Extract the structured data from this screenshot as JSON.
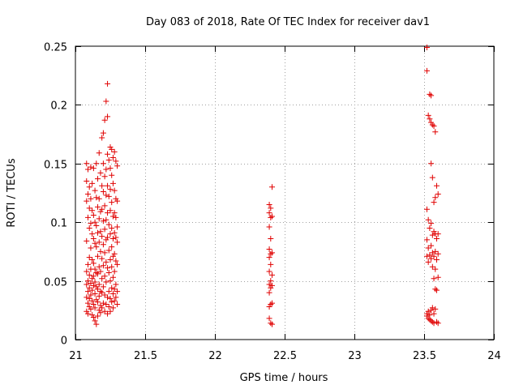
{
  "chart_data": {
    "type": "scatter",
    "title": "Day 083 of 2018, Rate Of TEC Index for receiver dav1",
    "xlabel": "GPS time / hours",
    "ylabel": "ROTI / TECUs",
    "xlim": [
      21,
      24
    ],
    "ylim": [
      0,
      0.25
    ],
    "grid": true,
    "marker": "+",
    "marker_color": "#e00000",
    "x_ticks": [
      "21",
      "21.5",
      "22",
      "22.5",
      "23",
      "23.5",
      "24"
    ],
    "y_ticks": [
      "0",
      "0.05",
      "0.1",
      "0.15",
      "0.2",
      "0.25"
    ],
    "series": [
      {
        "name": "dav1",
        "points": [
          [
            21.08,
            0.15
          ],
          [
            21.08,
            0.135
          ],
          [
            21.08,
            0.118
          ],
          [
            21.08,
            0.084
          ],
          [
            21.08,
            0.058
          ],
          [
            21.08,
            0.047
          ],
          [
            21.08,
            0.036
          ],
          [
            21.08,
            0.024
          ],
          [
            21.09,
            0.145
          ],
          [
            21.09,
            0.124
          ],
          [
            21.09,
            0.104
          ],
          [
            21.09,
            0.064
          ],
          [
            21.09,
            0.05
          ],
          [
            21.09,
            0.041
          ],
          [
            21.09,
            0.031
          ],
          [
            21.09,
            0.022
          ],
          [
            21.1,
            0.13
          ],
          [
            21.1,
            0.112
          ],
          [
            21.1,
            0.095
          ],
          [
            21.1,
            0.07
          ],
          [
            21.1,
            0.055
          ],
          [
            21.1,
            0.044
          ],
          [
            21.1,
            0.035
          ],
          [
            21.1,
            0.028
          ],
          [
            21.11,
            0.147
          ],
          [
            21.11,
            0.12
          ],
          [
            21.11,
            0.099
          ],
          [
            21.11,
            0.078
          ],
          [
            21.11,
            0.06
          ],
          [
            21.11,
            0.048
          ],
          [
            21.11,
            0.038
          ],
          [
            21.11,
            0.026
          ],
          [
            21.12,
            0.133
          ],
          [
            21.12,
            0.11
          ],
          [
            21.12,
            0.09
          ],
          [
            21.12,
            0.068
          ],
          [
            21.12,
            0.052
          ],
          [
            21.12,
            0.042
          ],
          [
            21.12,
            0.033
          ],
          [
            21.12,
            0.021
          ],
          [
            21.13,
            0.146
          ],
          [
            21.13,
            0.106
          ],
          [
            21.13,
            0.086
          ],
          [
            21.13,
            0.065
          ],
          [
            21.13,
            0.054
          ],
          [
            21.13,
            0.046
          ],
          [
            21.13,
            0.03
          ],
          [
            21.13,
            0.019
          ],
          [
            21.14,
            0.127
          ],
          [
            21.14,
            0.1
          ],
          [
            21.14,
            0.082
          ],
          [
            21.14,
            0.06
          ],
          [
            21.14,
            0.049
          ],
          [
            21.14,
            0.039
          ],
          [
            21.14,
            0.027
          ],
          [
            21.14,
            0.016
          ],
          [
            21.15,
            0.15
          ],
          [
            21.15,
            0.121
          ],
          [
            21.15,
            0.097
          ],
          [
            21.15,
            0.079
          ],
          [
            21.15,
            0.057
          ],
          [
            21.15,
            0.045
          ],
          [
            21.15,
            0.034
          ],
          [
            21.15,
            0.013
          ],
          [
            21.16,
            0.137
          ],
          [
            21.16,
            0.113
          ],
          [
            21.16,
            0.091
          ],
          [
            21.16,
            0.071
          ],
          [
            21.16,
            0.056
          ],
          [
            21.16,
            0.043
          ],
          [
            21.16,
            0.032
          ],
          [
            21.16,
            0.02
          ],
          [
            21.17,
            0.159
          ],
          [
            21.17,
            0.12
          ],
          [
            21.17,
            0.103
          ],
          [
            21.17,
            0.083
          ],
          [
            21.17,
            0.062
          ],
          [
            21.17,
            0.047
          ],
          [
            21.17,
            0.037
          ],
          [
            21.17,
            0.025
          ],
          [
            21.18,
            0.142
          ],
          [
            21.18,
            0.109
          ],
          [
            21.18,
            0.092
          ],
          [
            21.18,
            0.075
          ],
          [
            21.18,
            0.058
          ],
          [
            21.18,
            0.041
          ],
          [
            21.18,
            0.029
          ],
          [
            21.18,
            0.023
          ],
          [
            21.19,
            0.172
          ],
          [
            21.19,
            0.131
          ],
          [
            21.19,
            0.111
          ],
          [
            21.19,
            0.088
          ],
          [
            21.19,
            0.069
          ],
          [
            21.19,
            0.052
          ],
          [
            21.19,
            0.04
          ],
          [
            21.19,
            0.027
          ],
          [
            21.2,
            0.176
          ],
          [
            21.2,
            0.15
          ],
          [
            21.2,
            0.126
          ],
          [
            21.2,
            0.101
          ],
          [
            21.2,
            0.081
          ],
          [
            21.2,
            0.063
          ],
          [
            21.2,
            0.045
          ],
          [
            21.2,
            0.031
          ],
          [
            21.21,
            0.187
          ],
          [
            21.21,
            0.139
          ],
          [
            21.21,
            0.114
          ],
          [
            21.21,
            0.094
          ],
          [
            21.21,
            0.074
          ],
          [
            21.21,
            0.054
          ],
          [
            21.21,
            0.038
          ],
          [
            21.21,
            0.024
          ],
          [
            21.22,
            0.203
          ],
          [
            21.22,
            0.145
          ],
          [
            21.22,
            0.123
          ],
          [
            21.22,
            0.102
          ],
          [
            21.22,
            0.085
          ],
          [
            21.22,
            0.066
          ],
          [
            21.22,
            0.049
          ],
          [
            21.22,
            0.03
          ],
          [
            21.23,
            0.218
          ],
          [
            21.23,
            0.19
          ],
          [
            21.23,
            0.158
          ],
          [
            21.23,
            0.131
          ],
          [
            21.23,
            0.108
          ],
          [
            21.23,
            0.087
          ],
          [
            21.23,
            0.061
          ],
          [
            21.23,
            0.036
          ],
          [
            21.23,
            0.022
          ],
          [
            21.24,
            0.153
          ],
          [
            21.24,
            0.122
          ],
          [
            21.24,
            0.098
          ],
          [
            21.24,
            0.076
          ],
          [
            21.24,
            0.057
          ],
          [
            21.24,
            0.041
          ],
          [
            21.24,
            0.028
          ],
          [
            21.25,
            0.164
          ],
          [
            21.25,
            0.146
          ],
          [
            21.25,
            0.128
          ],
          [
            21.25,
            0.11
          ],
          [
            21.25,
            0.09
          ],
          [
            21.25,
            0.068
          ],
          [
            21.25,
            0.05
          ],
          [
            21.25,
            0.035
          ],
          [
            21.25,
            0.024
          ],
          [
            21.26,
            0.162
          ],
          [
            21.26,
            0.14
          ],
          [
            21.26,
            0.117
          ],
          [
            21.26,
            0.095
          ],
          [
            21.26,
            0.079
          ],
          [
            21.26,
            0.062
          ],
          [
            21.26,
            0.044
          ],
          [
            21.26,
            0.032
          ],
          [
            21.27,
            0.155
          ],
          [
            21.27,
            0.133
          ],
          [
            21.27,
            0.105
          ],
          [
            21.27,
            0.086
          ],
          [
            21.27,
            0.071
          ],
          [
            21.27,
            0.053
          ],
          [
            21.27,
            0.039
          ],
          [
            21.27,
            0.027
          ],
          [
            21.28,
            0.16
          ],
          [
            21.28,
            0.127
          ],
          [
            21.28,
            0.108
          ],
          [
            21.28,
            0.091
          ],
          [
            21.28,
            0.073
          ],
          [
            21.28,
            0.058
          ],
          [
            21.28,
            0.043
          ],
          [
            21.28,
            0.033
          ],
          [
            21.29,
            0.152
          ],
          [
            21.29,
            0.12
          ],
          [
            21.29,
            0.104
          ],
          [
            21.29,
            0.087
          ],
          [
            21.29,
            0.067
          ],
          [
            21.29,
            0.047
          ],
          [
            21.29,
            0.036
          ],
          [
            21.3,
            0.148
          ],
          [
            21.3,
            0.118
          ],
          [
            21.3,
            0.096
          ],
          [
            21.3,
            0.083
          ],
          [
            21.3,
            0.064
          ],
          [
            21.3,
            0.041
          ],
          [
            21.3,
            0.03
          ],
          [
            22.39,
            0.115
          ],
          [
            22.39,
            0.108
          ],
          [
            22.39,
            0.096
          ],
          [
            22.39,
            0.077
          ],
          [
            22.39,
            0.07
          ],
          [
            22.39,
            0.058
          ],
          [
            22.39,
            0.047
          ],
          [
            22.39,
            0.04
          ],
          [
            22.39,
            0.028
          ],
          [
            22.39,
            0.018
          ],
          [
            22.4,
            0.112
          ],
          [
            22.4,
            0.104
          ],
          [
            22.4,
            0.086
          ],
          [
            22.4,
            0.073
          ],
          [
            22.4,
            0.064
          ],
          [
            22.4,
            0.05
          ],
          [
            22.4,
            0.044
          ],
          [
            22.4,
            0.03
          ],
          [
            22.4,
            0.014
          ],
          [
            22.41,
            0.13
          ],
          [
            22.41,
            0.105
          ],
          [
            22.41,
            0.074
          ],
          [
            22.41,
            0.055
          ],
          [
            22.41,
            0.046
          ],
          [
            22.41,
            0.031
          ],
          [
            22.41,
            0.013
          ],
          [
            23.52,
            0.249
          ],
          [
            23.52,
            0.229
          ],
          [
            23.52,
            0.111
          ],
          [
            23.52,
            0.085
          ],
          [
            23.52,
            0.071
          ],
          [
            23.52,
            0.022
          ],
          [
            23.52,
            0.02
          ],
          [
            23.53,
            0.191
          ],
          [
            23.53,
            0.102
          ],
          [
            23.53,
            0.078
          ],
          [
            23.53,
            0.066
          ],
          [
            23.53,
            0.024
          ],
          [
            23.53,
            0.018
          ],
          [
            23.54,
            0.209
          ],
          [
            23.54,
            0.188
          ],
          [
            23.54,
            0.095
          ],
          [
            23.54,
            0.072
          ],
          [
            23.54,
            0.021
          ],
          [
            23.54,
            0.017
          ],
          [
            23.55,
            0.208
          ],
          [
            23.55,
            0.185
          ],
          [
            23.55,
            0.15
          ],
          [
            23.55,
            0.099
          ],
          [
            23.55,
            0.08
          ],
          [
            23.55,
            0.069
          ],
          [
            23.55,
            0.025
          ],
          [
            23.55,
            0.016
          ],
          [
            23.56,
            0.183
          ],
          [
            23.56,
            0.138
          ],
          [
            23.56,
            0.089
          ],
          [
            23.56,
            0.074
          ],
          [
            23.56,
            0.062
          ],
          [
            23.56,
            0.027
          ],
          [
            23.56,
            0.015
          ],
          [
            23.57,
            0.182
          ],
          [
            23.57,
            0.117
          ],
          [
            23.57,
            0.092
          ],
          [
            23.57,
            0.071
          ],
          [
            23.57,
            0.052
          ],
          [
            23.57,
            0.022
          ],
          [
            23.57,
            0.014
          ],
          [
            23.58,
            0.177
          ],
          [
            23.58,
            0.121
          ],
          [
            23.58,
            0.09
          ],
          [
            23.58,
            0.075
          ],
          [
            23.58,
            0.06
          ],
          [
            23.58,
            0.043
          ],
          [
            23.58,
            0.026
          ],
          [
            23.59,
            0.131
          ],
          [
            23.59,
            0.086
          ],
          [
            23.59,
            0.068
          ],
          [
            23.59,
            0.042
          ],
          [
            23.59,
            0.015
          ],
          [
            23.6,
            0.124
          ],
          [
            23.6,
            0.09
          ],
          [
            23.6,
            0.073
          ],
          [
            23.6,
            0.053
          ],
          [
            23.6,
            0.014
          ]
        ]
      }
    ]
  }
}
